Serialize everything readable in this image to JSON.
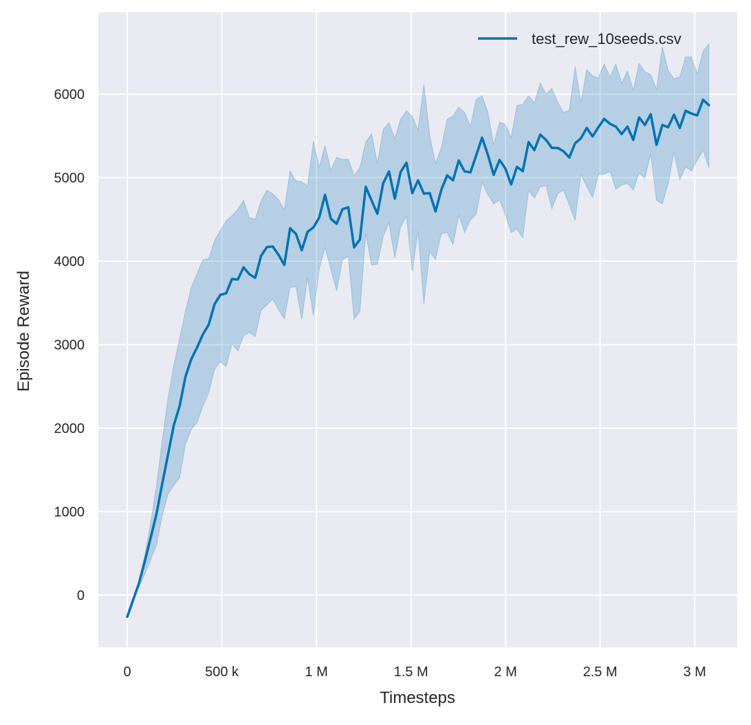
{
  "chart_data": {
    "type": "line",
    "title": "",
    "xlabel": "Timesteps",
    "ylabel": "Episode Reward",
    "xlim": [
      -153000,
      3225000
    ],
    "ylim": [
      -626,
      6979
    ],
    "grid": true,
    "background_color": "#eaeaf2",
    "legend_position": "top-right",
    "x_ticks": [
      0,
      500000,
      1000000,
      1500000,
      2000000,
      2500000,
      3000000
    ],
    "x_tick_labels": [
      "0",
      "500 k",
      "1 M",
      "1.5 M",
      "2 M",
      "2.5 M",
      "3 M"
    ],
    "y_ticks": [
      0,
      1000,
      2000,
      3000,
      4000,
      5000,
      6000
    ],
    "y_tick_labels": [
      "0",
      "1000",
      "2000",
      "3000",
      "4000",
      "5000",
      "6000"
    ],
    "x": [
      0,
      30750,
      61500,
      92250,
      123000,
      153750,
      184500,
      215250,
      246000,
      276750,
      307500,
      338250,
      369000,
      399750,
      430500,
      461250,
      492000,
      522750,
      553500,
      584250,
      615000,
      645750,
      676500,
      707250,
      738000,
      768750,
      799500,
      830250,
      861000,
      891750,
      922500,
      953250,
      984000,
      1014750,
      1045500,
      1076250,
      1107000,
      1137750,
      1168500,
      1199250,
      1230000,
      1260750,
      1291500,
      1322250,
      1353000,
      1383750,
      1414500,
      1445250,
      1476000,
      1506750,
      1537500,
      1568250,
      1599000,
      1629750,
      1660500,
      1691250,
      1722000,
      1752750,
      1783500,
      1814250,
      1845000,
      1875750,
      1906500,
      1937250,
      1968000,
      1998750,
      2029500,
      2060250,
      2091000,
      2121750,
      2152500,
      2183250,
      2214000,
      2244750,
      2275500,
      2306250,
      2337000,
      2367750,
      2398500,
      2429250,
      2460000,
      2490750,
      2521500,
      2552250,
      2583000,
      2613750,
      2644500,
      2675250,
      2706000,
      2736750,
      2767500,
      2798250,
      2829000,
      2859750,
      2890500,
      2921250,
      2952000,
      2982750,
      3013500,
      3044250,
      3075000
    ],
    "series": [
      {
        "name": "test_rew_10seeds.csv",
        "color": "#0072b2",
        "values": [
          -260,
          -60,
          140,
          400,
          680,
          965,
          1330,
          1680,
          2035,
          2263,
          2614,
          2825,
          2965,
          3123,
          3238,
          3484,
          3596,
          3614,
          3786,
          3779,
          3926,
          3842,
          3800,
          4063,
          4168,
          4175,
          4077,
          3954,
          4393,
          4326,
          4130,
          4351,
          4403,
          4521,
          4795,
          4507,
          4447,
          4622,
          4644,
          4164,
          4260,
          4890,
          4726,
          4567,
          4932,
          5074,
          4748,
          5068,
          5178,
          4814,
          4967,
          4808,
          4814,
          4595,
          4855,
          5027,
          4967,
          5205,
          5074,
          5063,
          5268,
          5479,
          5274,
          5033,
          5211,
          5110,
          4918,
          5129,
          5077,
          5425,
          5329,
          5515,
          5452,
          5356,
          5356,
          5315,
          5241,
          5411,
          5471,
          5595,
          5493,
          5603,
          5704,
          5644,
          5611,
          5521,
          5611,
          5452,
          5721,
          5630,
          5759,
          5392,
          5630,
          5603,
          5753,
          5595,
          5800,
          5767,
          5745,
          5932,
          5868
        ],
        "upper": [
          -260,
          -40,
          170,
          480,
          850,
          1300,
          1850,
          2350,
          2754,
          3070,
          3400,
          3684,
          3850,
          4017,
          4028,
          4246,
          4368,
          4484,
          4544,
          4621,
          4730,
          4519,
          4502,
          4719,
          4849,
          4807,
          4737,
          4614,
          5080,
          4960,
          4950,
          4900,
          5438,
          5123,
          5384,
          5088,
          5241,
          5219,
          5219,
          5022,
          5123,
          5425,
          5526,
          5170,
          5575,
          5658,
          5466,
          5699,
          5800,
          5734,
          5570,
          6118,
          5507,
          5170,
          5356,
          5699,
          5740,
          5844,
          5781,
          5616,
          5937,
          5981,
          5781,
          5397,
          5663,
          5640,
          5479,
          5863,
          5877,
          5978,
          5896,
          6132,
          6000,
          6068,
          5904,
          5781,
          5808,
          6329,
          5896,
          6296,
          6219,
          6192,
          6362,
          6205,
          6362,
          6132,
          6279,
          6049,
          6370,
          6268,
          6233,
          6055,
          6570,
          6279,
          6186,
          6205,
          6447,
          6444,
          6241,
          6515,
          6597
        ],
        "lower": [
          -260,
          -70,
          90,
          250,
          420,
          596,
          947,
          1210,
          1316,
          1403,
          1807,
          1982,
          2070,
          2263,
          2421,
          2702,
          2796,
          2737,
          3007,
          2923,
          3105,
          3147,
          3095,
          3410,
          3474,
          3544,
          3421,
          3305,
          3684,
          3695,
          3298,
          3800,
          3342,
          3904,
          4164,
          3904,
          3644,
          4019,
          4055,
          3301,
          3397,
          4337,
          3953,
          3964,
          4293,
          4458,
          4036,
          4411,
          4540,
          3877,
          4359,
          3482,
          4110,
          4019,
          4329,
          4342,
          4200,
          4548,
          4342,
          4493,
          4562,
          4945,
          4795,
          4685,
          4732,
          4560,
          4342,
          4384,
          4279,
          4849,
          4753,
          4890,
          4904,
          4625,
          4808,
          4849,
          4671,
          4488,
          5041,
          4890,
          4762,
          5036,
          5041,
          5074,
          4863,
          4910,
          4932,
          4849,
          5055,
          4992,
          5282,
          4726,
          4685,
          4926,
          5310,
          4973,
          5129,
          5082,
          5205,
          5329,
          5118
        ]
      }
    ]
  }
}
